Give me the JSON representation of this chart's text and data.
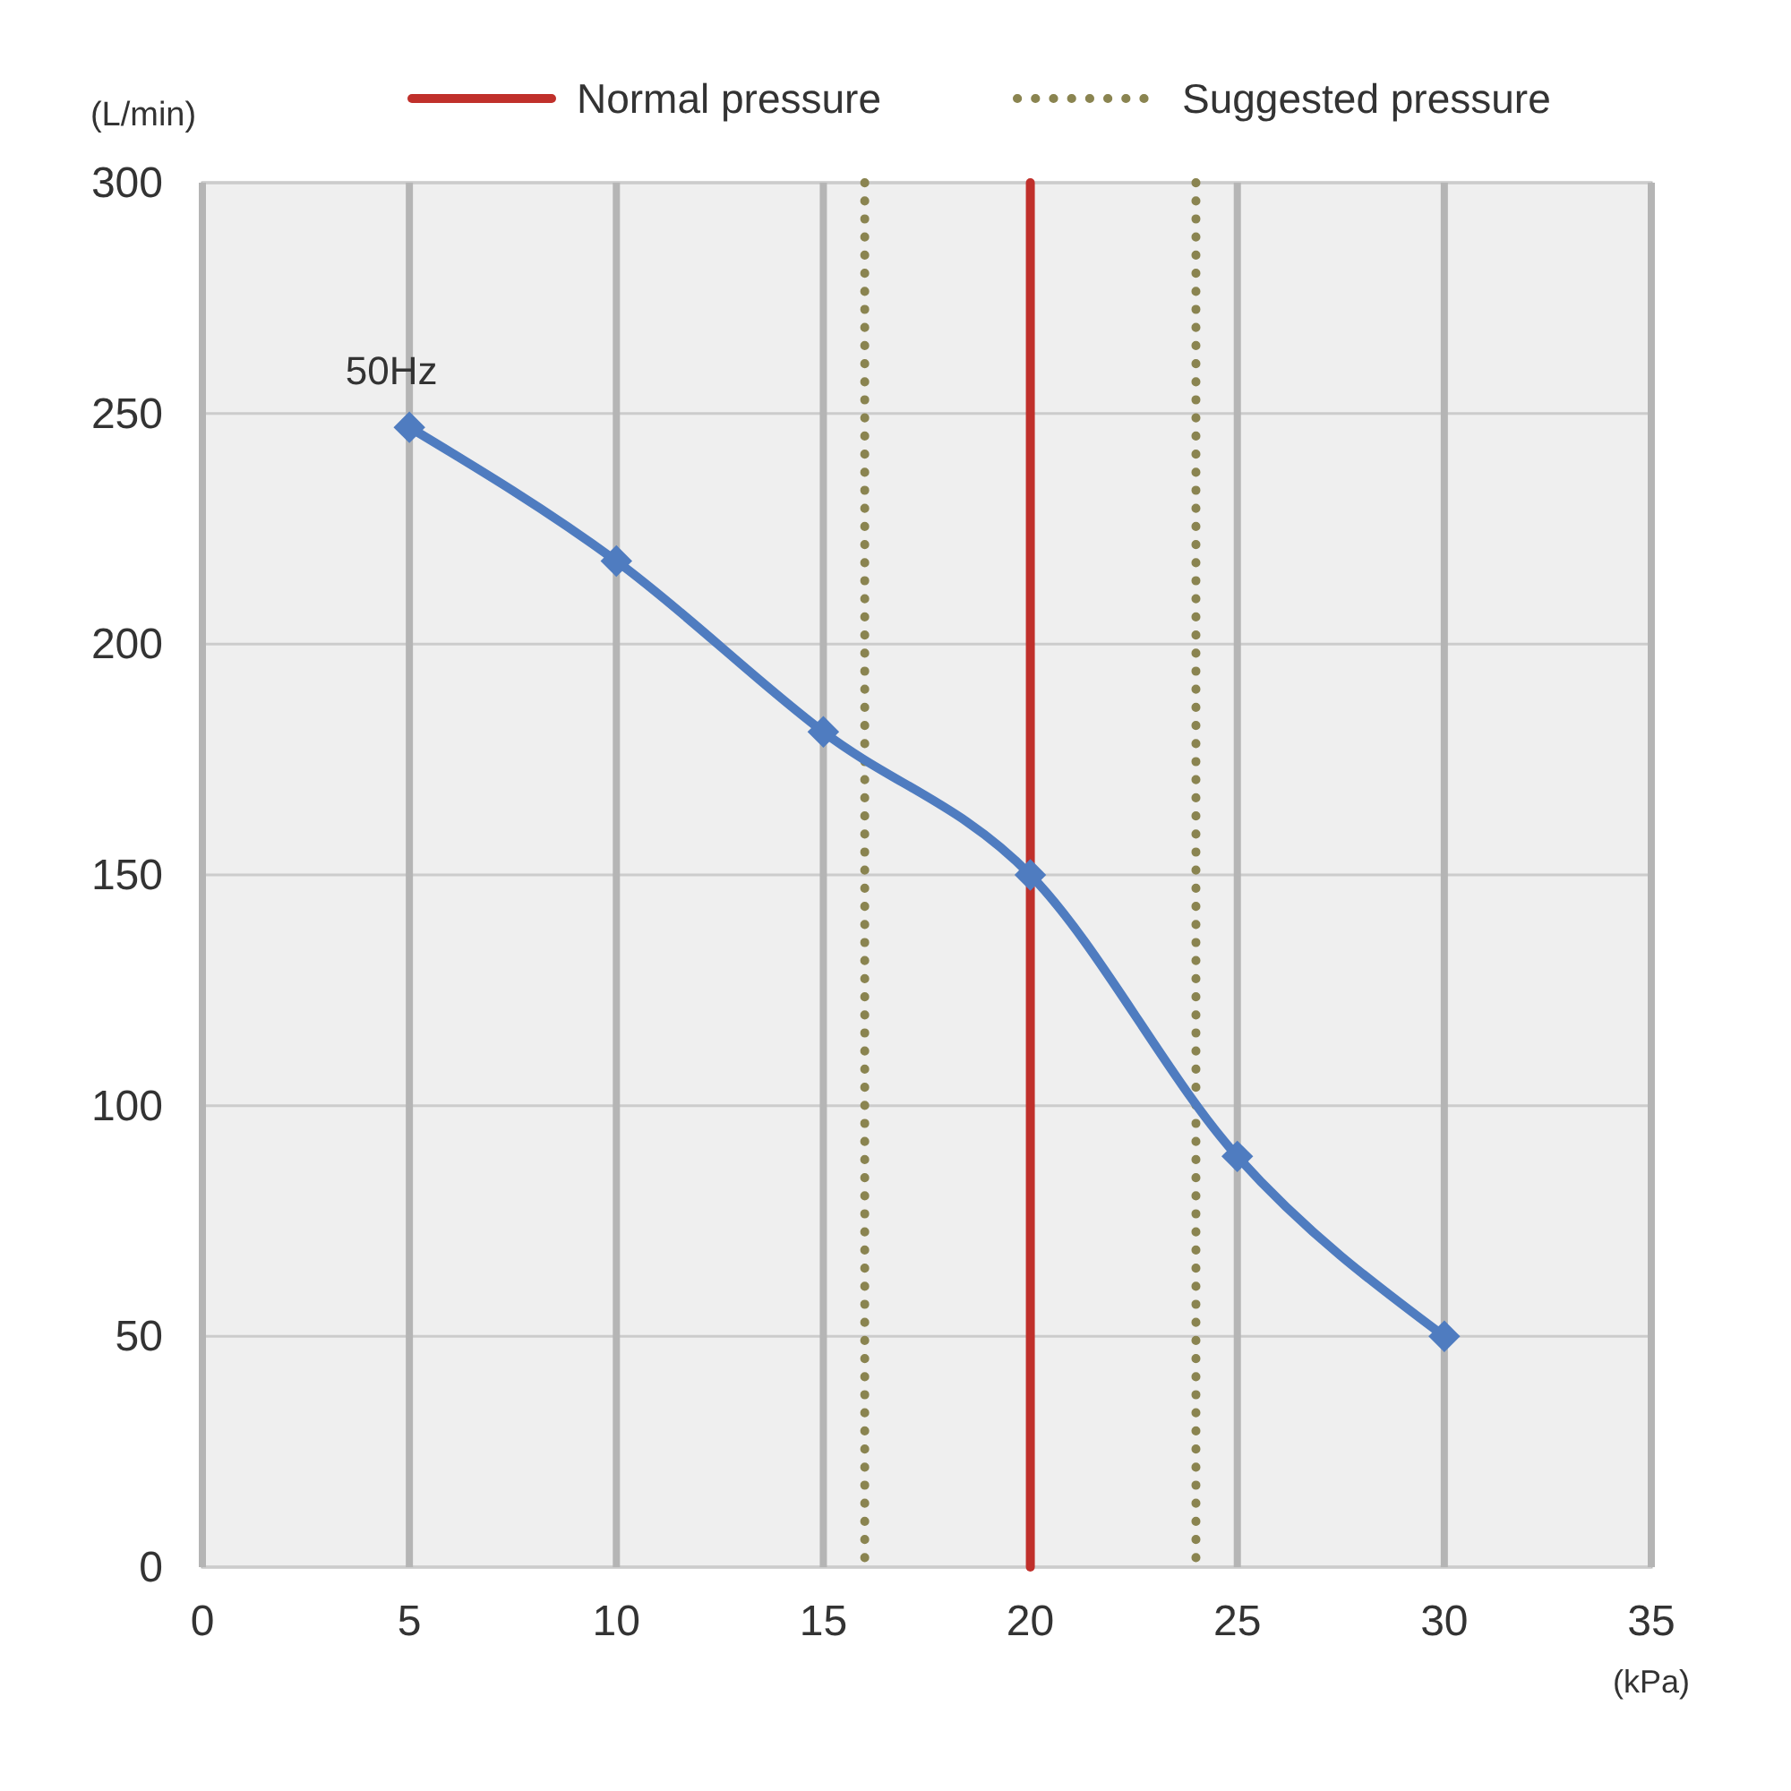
{
  "chart_data": {
    "type": "line",
    "xlabel": "(kPa)",
    "ylabel": "(L/min)",
    "x": [
      5,
      10,
      15,
      20,
      25,
      30
    ],
    "series": [
      {
        "name": "50Hz",
        "color": "#4f7cc0",
        "values": [
          247,
          218,
          181,
          150,
          89,
          50
        ]
      }
    ],
    "xlim": [
      0,
      35
    ],
    "xticks": [
      0,
      5,
      10,
      15,
      20,
      25,
      30,
      35
    ],
    "ylim": [
      0,
      300
    ],
    "yticks": [
      0,
      50,
      100,
      150,
      200,
      250,
      300
    ],
    "grid": true,
    "legend": "top right",
    "marker": "diamond",
    "line_style": "solid",
    "ref_lines": [
      {
        "axis": "x",
        "value": 20,
        "label": "Normal pressure",
        "color": "#c0302b",
        "line_style": "solid"
      },
      {
        "axis": "x",
        "value": 16,
        "label": "Suggested pressure",
        "color": "#8a8450",
        "line_style": "dotted"
      },
      {
        "axis": "x",
        "value": 24,
        "color": "#8a8450",
        "line_style": "dotted"
      }
    ]
  }
}
